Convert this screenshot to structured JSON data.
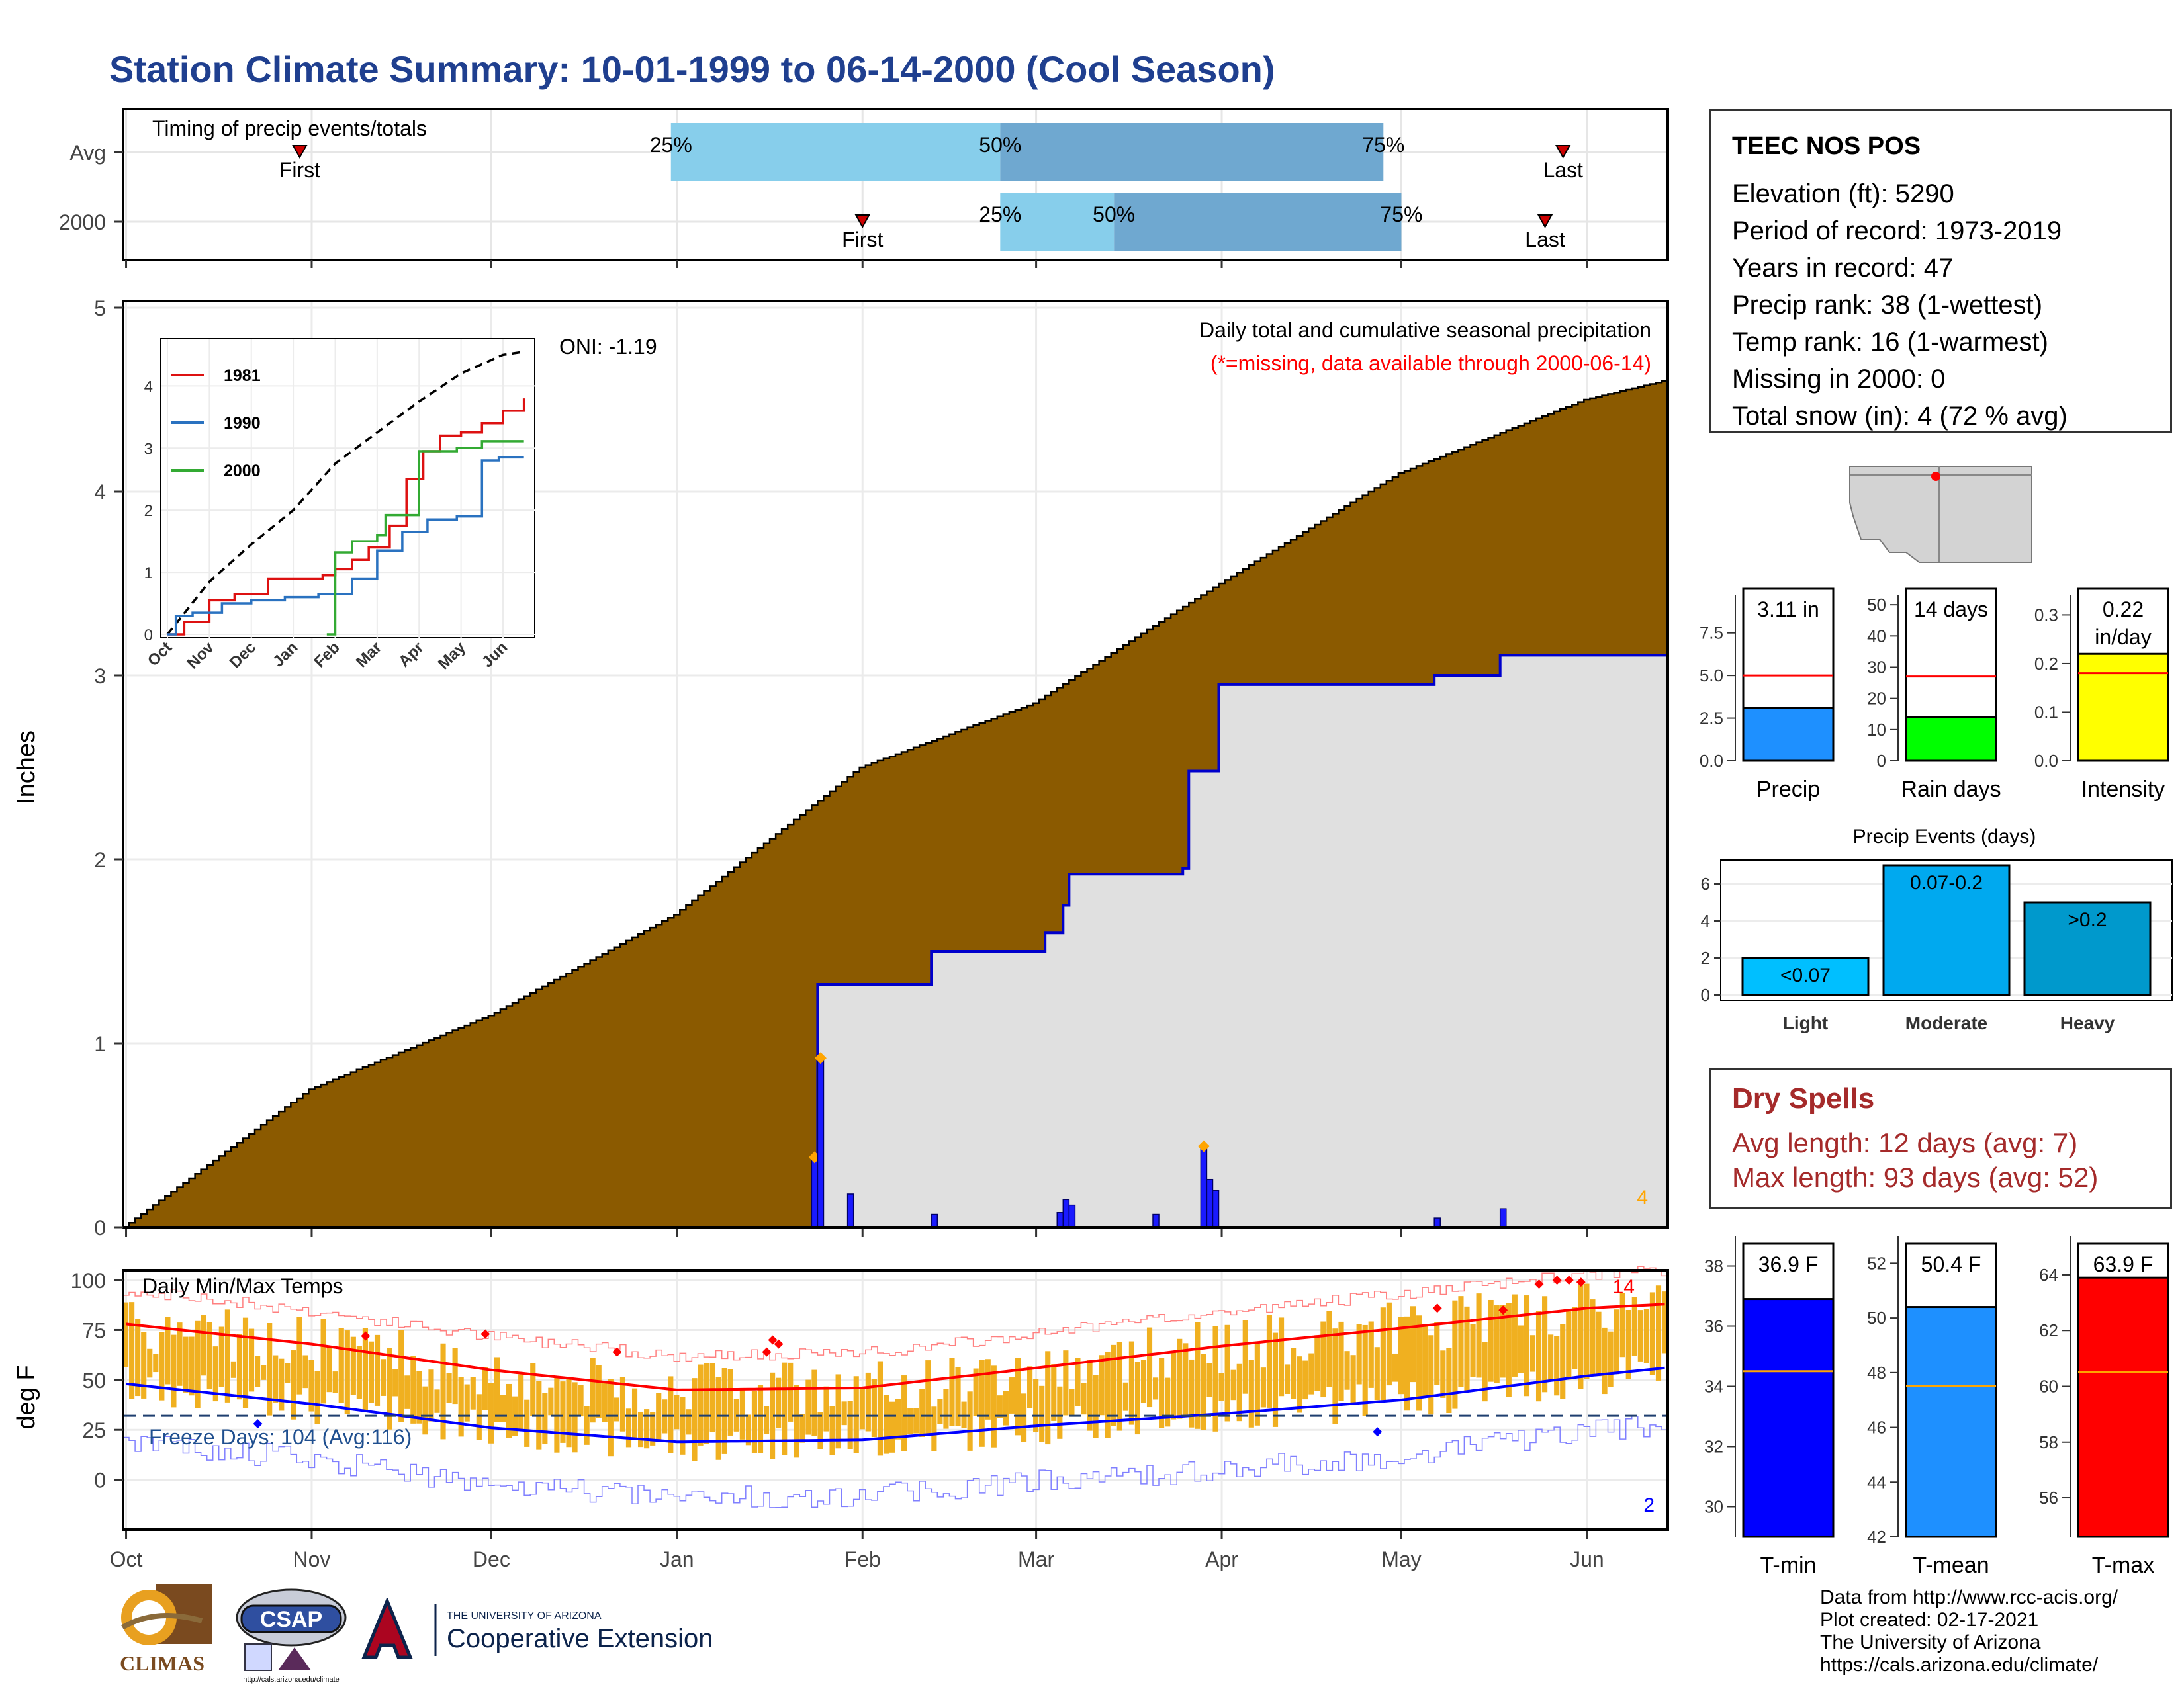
{
  "title": "Station Climate Summary: 10-01-1999 to 06-14-2000 (Cool Season)",
  "colors": {
    "title": "#1f3f8f",
    "cum_fill": "#8b5a00",
    "cum_grey": "#e0e0e0",
    "line_blue": "#0000cc",
    "bar_blue": "#1a1aff",
    "marker_orange": "#ffa500",
    "temp_bar": "#f0b020",
    "max_line": "#ff0000",
    "min_line": "#0000ff",
    "band_light": "#87ceeb",
    "band_dark": "#6fa8d0",
    "precip_bar": "#1e90ff",
    "raindays_bar": "#00ff00",
    "intensity_bar": "#ffff00",
    "event_light": "#00bfff",
    "event_mod": "#00a9ef",
    "event_heavy": "#0099cc",
    "tmin_bar": "#0000ff",
    "tmean_bar": "#1e90ff",
    "tmax_bar": "#ff0000",
    "dry_text": "#a52a2a",
    "freeze_text": "#1f4f8f"
  },
  "timing": {
    "label": "Timing of precip events/totals",
    "rows": [
      {
        "name": "Avg",
        "first_day": 29,
        "p25_day": 91,
        "p50_day": 146,
        "p75_day": 210,
        "last_day": 240
      },
      {
        "name": "2000",
        "first_day": 123,
        "p25_day": 146,
        "p50_day": 165,
        "p75_day": 213,
        "last_day": 237
      }
    ],
    "first_label": "First",
    "last_label": "Last",
    "p25_label": "25%",
    "p50_label": "50%",
    "p75_label": "75%"
  },
  "main_chart": {
    "ylabel": "Inches",
    "y_ticks": [
      "0",
      "1",
      "2",
      "3",
      "4",
      "5"
    ],
    "ylim": [
      0,
      5
    ],
    "x_ticks": [
      "Oct",
      "Nov",
      "Dec",
      "Jan",
      "Feb",
      "Mar",
      "Apr",
      "May",
      "Jun"
    ],
    "oni": "ONI: -1.19",
    "subtitle": "Daily total and cumulative seasonal precipitation",
    "missing_note": "(*=missing, data available through 2000-06-14)",
    "missing_count": "4"
  },
  "inset": {
    "legend": [
      "1981",
      "1990",
      "2000"
    ],
    "y_ticks": [
      "0",
      "1",
      "2",
      "3",
      "4"
    ],
    "x_ticks": [
      "Oct",
      "Nov",
      "Dec",
      "Jan",
      "Feb",
      "Mar",
      "Apr",
      "May",
      "Jun"
    ]
  },
  "temp_chart": {
    "ylabel": "deg F",
    "label": "Daily Min/Max Temps",
    "y_ticks": [
      "0",
      "25",
      "50",
      "75",
      "100"
    ],
    "freeze": "Freeze Days: 104 (Avg:116)",
    "record_high_count": "14",
    "record_low_count": "2"
  },
  "station": {
    "name": "TEEC NOS POS",
    "lines": [
      "Elevation (ft): 5290",
      "Period of record: 1973-2019",
      "Years in record: 47",
      "Precip rank: 38 (1-wettest)",
      "Temp rank: 16 (1-warmest)",
      "Missing in 2000: 0",
      "Total snow (in): 4 (72 % avg)"
    ]
  },
  "mini_bars": {
    "precip": {
      "label": "Precip",
      "value_text": "3.11 in",
      "value": 3.11,
      "avg": 5.0,
      "ticks": [
        "0.0",
        "2.5",
        "5.0",
        "7.5"
      ]
    },
    "raindays": {
      "label": "Rain days",
      "value_text": "14 days",
      "value": 14,
      "avg": 27,
      "ticks": [
        "0",
        "10",
        "20",
        "30",
        "40",
        "50"
      ]
    },
    "intensity": {
      "label": "Intensity",
      "value_text": "0.22 in/day",
      "value": 0.22,
      "avg": 0.18,
      "ticks": [
        "0.0",
        "0.1",
        "0.2",
        "0.3"
      ]
    }
  },
  "events": {
    "title": "Precip Events (days)",
    "categories": [
      "Light",
      "Moderate",
      "Heavy"
    ],
    "bar_labels": [
      "<0.07",
      "0.07-0.2",
      ">0.2"
    ],
    "values": [
      2,
      7,
      5
    ],
    "ticks": [
      "0",
      "2",
      "4",
      "6"
    ]
  },
  "dry_spells": {
    "title": "Dry Spells",
    "avg": "Avg length: 12 days (avg: 7)",
    "max": "Max length: 93 days (avg: 52)"
  },
  "temp_bars": {
    "tmin": {
      "label": "T-min",
      "value_text": "36.9 F",
      "value": 36.9,
      "avg": 34.5,
      "ticks": [
        "30",
        "32",
        "34",
        "36",
        "38"
      ]
    },
    "tmean": {
      "label": "T-mean",
      "value_text": "50.4 F",
      "value": 50.4,
      "avg": 47.5,
      "ticks": [
        "42",
        "44",
        "46",
        "48",
        "50",
        "52"
      ]
    },
    "tmax": {
      "label": "T-max",
      "value_text": "63.9 F",
      "value": 63.9,
      "avg": 60.5,
      "ticks": [
        "56",
        "58",
        "60",
        "62",
        "64"
      ]
    }
  },
  "footer": [
    "Data from http://www.rcc-acis.org/",
    "Plot created: 02-17-2021",
    "The University of Arizona",
    "https://cals.arizona.edu/climate/"
  ],
  "logos": {
    "climas": "CLIMAS",
    "csap": "CSAP",
    "csap_url": "http://cals.arizona.edu/climate",
    "ua_small": "THE UNIVERSITY OF ARIZONA",
    "ua_big": "Cooperative Extension"
  },
  "chart_data": [
    {
      "type": "area",
      "title": "Daily total and cumulative seasonal precipitation",
      "ylabel": "Inches",
      "ylim": [
        0,
        5
      ],
      "x_range": [
        "1999-10-01",
        "2000-06-14"
      ],
      "series": [
        {
          "name": "",
          "kind": "cumulative_average",
          "x": [
            "1999-10-01",
            "1999-11-01",
            "1999-12-01",
            "2000-01-01",
            "2000-02-01",
            "2000-03-01",
            "2000-04-01",
            "2000-05-01",
            "2000-06-01",
            "2000-06-14"
          ],
          "y": [
            0,
            0.75,
            1.15,
            1.7,
            2.5,
            2.85,
            3.5,
            4.1,
            4.5,
            4.6
          ]
        },
        {
          "name": "",
          "kind": "cumulative_2000",
          "x": [
            "2000-01-01",
            "2000-01-24",
            "2000-01-25",
            "2000-02-13",
            "2000-03-03",
            "2000-03-06",
            "2000-03-07",
            "2000-03-26",
            "2000-03-27",
            "2000-04-01",
            "2000-05-07",
            "2000-05-18",
            "2000-06-14"
          ],
          "y": [
            0,
            0,
            1.32,
            1.5,
            1.6,
            1.75,
            1.92,
            1.95,
            2.48,
            2.95,
            3.0,
            3.11,
            3.11
          ]
        },
        {
          "name": "",
          "kind": "daily",
          "x": [
            "2000-01-24",
            "2000-01-25",
            "2000-01-30",
            "2000-02-13",
            "2000-03-05",
            "2000-03-06",
            "2000-03-07",
            "2000-03-21",
            "2000-03-29",
            "2000-03-30",
            "2000-03-31",
            "2000-05-07",
            "2000-05-18"
          ],
          "y": [
            0.38,
            0.92,
            0.18,
            0.07,
            0.08,
            0.15,
            0.12,
            0.07,
            0.44,
            0.26,
            0.2,
            0.05,
            0.1
          ]
        }
      ]
    },
    {
      "type": "line",
      "title": "",
      "x_ticks": [
        "Oct",
        "Nov",
        "Dec",
        "Jan",
        "Feb",
        "Mar",
        "Apr",
        "May",
        "Jun"
      ],
      "ylim": [
        0,
        4.6
      ],
      "series": [
        {
          "name": "",
          "style": "dashed",
          "x_month": [
            0,
            1,
            2,
            3,
            4,
            5,
            6,
            7,
            8,
            8.5
          ],
          "y": [
            0,
            0.85,
            1.45,
            2.0,
            2.75,
            3.25,
            3.75,
            4.2,
            4.5,
            4.55
          ]
        },
        {
          "name": "1981",
          "x_month": [
            0,
            0.4,
            1.0,
            1.6,
            2.4,
            3.7,
            4.0,
            4.4,
            4.8,
            5.3,
            5.7,
            6.1,
            6.5,
            7.0,
            7.5,
            8.0,
            8.5
          ],
          "y": [
            0,
            0.2,
            0.55,
            0.65,
            0.9,
            0.95,
            1.05,
            1.2,
            1.4,
            1.75,
            2.5,
            2.95,
            3.2,
            3.25,
            3.4,
            3.6,
            3.8
          ]
        },
        {
          "name": "1990",
          "x_month": [
            0,
            0.2,
            0.6,
            1.3,
            2.0,
            2.8,
            3.6,
            4.4,
            5.0,
            5.6,
            6.2,
            6.9,
            7.5,
            7.9,
            8.5
          ],
          "y": [
            0,
            0.3,
            0.35,
            0.5,
            0.55,
            0.6,
            0.65,
            0.9,
            1.35,
            1.65,
            1.85,
            1.9,
            2.8,
            2.85,
            2.85
          ]
        },
        {
          "name": "2000",
          "x_month": [
            3.8,
            4.0,
            4.4,
            5.0,
            5.2,
            6.0,
            6.9,
            7.5,
            8.0,
            8.5
          ],
          "y": [
            0,
            1.32,
            1.5,
            1.6,
            1.92,
            2.95,
            3.0,
            3.11,
            3.11,
            3.11
          ]
        }
      ]
    },
    {
      "type": "bar",
      "title": "Daily Min/Max Temps",
      "ylabel": "deg F",
      "ylim": [
        -25,
        105
      ],
      "x_ticks": [
        "Oct",
        "Nov",
        "Dec",
        "Jan",
        "Feb",
        "Mar",
        "Apr",
        "May",
        "Jun"
      ],
      "series": [
        {
          "name": "",
          "kind": "avg_max",
          "x": [
            "1999-10-01",
            "1999-11-01",
            "1999-12-01",
            "2000-01-01",
            "2000-02-01",
            "2000-03-01",
            "2000-04-01",
            "2000-05-01",
            "2000-06-01",
            "2000-06-14"
          ],
          "y": [
            78,
            68,
            55,
            45,
            46,
            56,
            67,
            76,
            86,
            88
          ]
        },
        {
          "name": "",
          "kind": "avg_min",
          "x": [
            "1999-10-01",
            "1999-11-01",
            "1999-12-01",
            "2000-01-01",
            "2000-02-01",
            "2000-03-01",
            "2000-04-01",
            "2000-05-01",
            "2000-06-01",
            "2000-06-14"
          ],
          "y": [
            48,
            38,
            26,
            19,
            20,
            27,
            33,
            40,
            52,
            56
          ]
        },
        {
          "name": "",
          "kind": "freeze_line",
          "y": 32
        }
      ]
    },
    {
      "type": "bar",
      "categories": [
        "Precip",
        "Rain days",
        "Intensity"
      ],
      "values": [
        3.11,
        14,
        0.22
      ],
      "averages": [
        5.0,
        27,
        0.18
      ]
    },
    {
      "type": "bar",
      "title": "Precip Events (days)",
      "categories": [
        "Light",
        "Moderate",
        "Heavy"
      ],
      "values": [
        2,
        7,
        5
      ]
    },
    {
      "type": "bar",
      "categories": [
        "T-min",
        "T-mean",
        "T-max"
      ],
      "values": [
        36.9,
        50.4,
        63.9
      ],
      "averages": [
        34.5,
        47.5,
        60.5
      ]
    }
  ]
}
